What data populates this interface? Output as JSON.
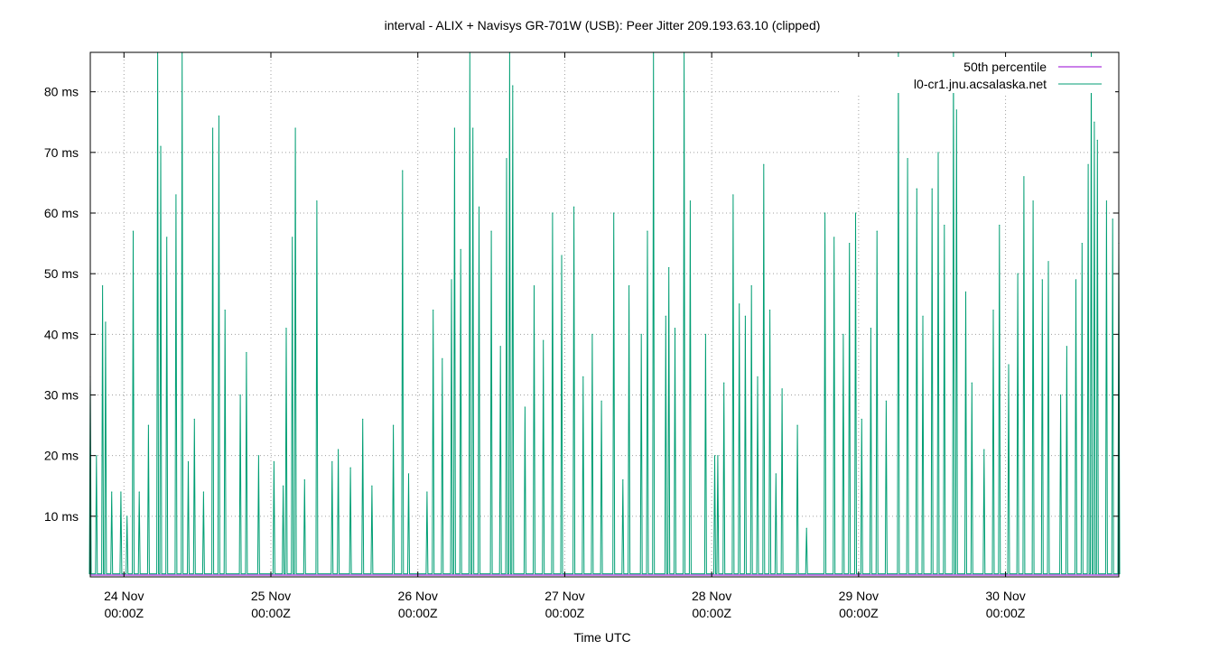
{
  "chart_data": {
    "type": "line",
    "title": "interval - ALIX + Navisys GR-701W (USB): Peer Jitter 209.193.63.10 (clipped)",
    "xlabel": "Time UTC",
    "ylabel": "",
    "x_range": [
      "2025-11-23T18:30Z",
      "2025-11-30T18:30Z"
    ],
    "ylim": [
      0,
      86.5
    ],
    "y_unit": "ms",
    "y_ticks": [
      {
        "value": 10,
        "label": "10 ms"
      },
      {
        "value": 20,
        "label": "20 ms"
      },
      {
        "value": 30,
        "label": "30 ms"
      },
      {
        "value": 40,
        "label": "40 ms"
      },
      {
        "value": 50,
        "label": "50 ms"
      },
      {
        "value": 60,
        "label": "60 ms"
      },
      {
        "value": 70,
        "label": "70 ms"
      },
      {
        "value": 80,
        "label": "80 ms"
      }
    ],
    "x_ticks": [
      {
        "value": "2025-11-24T00:00Z",
        "day": "24 Nov",
        "time": "00:00Z"
      },
      {
        "value": "2025-11-25T00:00Z",
        "day": "25 Nov",
        "time": "00:00Z"
      },
      {
        "value": "2025-11-26T00:00Z",
        "day": "26 Nov",
        "time": "00:00Z"
      },
      {
        "value": "2025-11-27T00:00Z",
        "day": "27 Nov",
        "time": "00:00Z"
      },
      {
        "value": "2025-11-28T00:00Z",
        "day": "28 Nov",
        "time": "00:00Z"
      },
      {
        "value": "2025-11-29T00:00Z",
        "day": "29 Nov",
        "time": "00:00Z"
      },
      {
        "value": "2025-11-30T00:00Z",
        "day": "30 Nov",
        "time": "00:00Z"
      }
    ],
    "grid": true,
    "legend_position": "top-right",
    "series": [
      {
        "name": "50th percentile",
        "color": "#9400d3",
        "kind": "constant",
        "value": 0.3
      },
      {
        "name": "l0-cr1.jnu.acsalaska.net",
        "color": "#009e73",
        "kind": "spikes",
        "baseline": 0.5,
        "points": [
          [
            "2025-11-23T18:30Z",
            33
          ],
          [
            "2025-11-23T19:30Z",
            20
          ],
          [
            "2025-11-23T20:30Z",
            48
          ],
          [
            "2025-11-23T21:00Z",
            42
          ],
          [
            "2025-11-23T22:00Z",
            14
          ],
          [
            "2025-11-23T23:30Z",
            14
          ],
          [
            "2025-11-24T00:30Z",
            10
          ],
          [
            "2025-11-24T01:30Z",
            57
          ],
          [
            "2025-11-24T02:30Z",
            14
          ],
          [
            "2025-11-24T04:00Z",
            25
          ],
          [
            "2025-11-24T05:30Z",
            86.5
          ],
          [
            "2025-11-24T06:00Z",
            71
          ],
          [
            "2025-11-24T07:00Z",
            56
          ],
          [
            "2025-11-24T08:30Z",
            63
          ],
          [
            "2025-11-24T09:30Z",
            86.5
          ],
          [
            "2025-11-24T10:30Z",
            19
          ],
          [
            "2025-11-24T11:30Z",
            26
          ],
          [
            "2025-11-24T13:00Z",
            14
          ],
          [
            "2025-11-24T14:30Z",
            74
          ],
          [
            "2025-11-24T15:30Z",
            76
          ],
          [
            "2025-11-24T16:30Z",
            44
          ],
          [
            "2025-11-24T19:00Z",
            30
          ],
          [
            "2025-11-24T20:00Z",
            37
          ],
          [
            "2025-11-24T22:00Z",
            20
          ],
          [
            "2025-11-25T00:30Z",
            19
          ],
          [
            "2025-11-25T02:00Z",
            15
          ],
          [
            "2025-11-25T02:30Z",
            41
          ],
          [
            "2025-11-25T03:30Z",
            56
          ],
          [
            "2025-11-25T04:00Z",
            74
          ],
          [
            "2025-11-25T05:30Z",
            16
          ],
          [
            "2025-11-25T07:30Z",
            62
          ],
          [
            "2025-11-25T10:00Z",
            19
          ],
          [
            "2025-11-25T11:00Z",
            21
          ],
          [
            "2025-11-25T13:00Z",
            18
          ],
          [
            "2025-11-25T15:00Z",
            26
          ],
          [
            "2025-11-25T16:30Z",
            15
          ],
          [
            "2025-11-25T20:00Z",
            25
          ],
          [
            "2025-11-25T21:30Z",
            67
          ],
          [
            "2025-11-25T22:30Z",
            17
          ],
          [
            "2025-11-26T01:30Z",
            14
          ],
          [
            "2025-11-26T02:30Z",
            44
          ],
          [
            "2025-11-26T04:00Z",
            36
          ],
          [
            "2025-11-26T05:30Z",
            49
          ],
          [
            "2025-11-26T06:00Z",
            74
          ],
          [
            "2025-11-26T07:00Z",
            54
          ],
          [
            "2025-11-26T08:30Z",
            86.5
          ],
          [
            "2025-11-26T09:00Z",
            74
          ],
          [
            "2025-11-26T10:00Z",
            61
          ],
          [
            "2025-11-26T12:00Z",
            57
          ],
          [
            "2025-11-26T13:30Z",
            38
          ],
          [
            "2025-11-26T14:30Z",
            69
          ],
          [
            "2025-11-26T15:00Z",
            86.5
          ],
          [
            "2025-11-26T15:30Z",
            81
          ],
          [
            "2025-11-26T17:30Z",
            28
          ],
          [
            "2025-11-26T19:00Z",
            48
          ],
          [
            "2025-11-26T20:30Z",
            39
          ],
          [
            "2025-11-26T22:00Z",
            60
          ],
          [
            "2025-11-26T23:30Z",
            53
          ],
          [
            "2025-11-27T01:30Z",
            61
          ],
          [
            "2025-11-27T03:00Z",
            33
          ],
          [
            "2025-11-27T04:30Z",
            40
          ],
          [
            "2025-11-27T06:00Z",
            29
          ],
          [
            "2025-11-27T08:00Z",
            60
          ],
          [
            "2025-11-27T09:30Z",
            16
          ],
          [
            "2025-11-27T10:30Z",
            48
          ],
          [
            "2025-11-27T12:30Z",
            40
          ],
          [
            "2025-11-27T13:30Z",
            57
          ],
          [
            "2025-11-27T14:30Z",
            86.5
          ],
          [
            "2025-11-27T16:30Z",
            43
          ],
          [
            "2025-11-27T17:00Z",
            51
          ],
          [
            "2025-11-27T18:00Z",
            41
          ],
          [
            "2025-11-27T19:30Z",
            86.5
          ],
          [
            "2025-11-27T20:30Z",
            62
          ],
          [
            "2025-11-27T23:00Z",
            40
          ],
          [
            "2025-11-28T00:30Z",
            20
          ],
          [
            "2025-11-28T01:00Z",
            20
          ],
          [
            "2025-11-28T02:00Z",
            32
          ],
          [
            "2025-11-28T03:30Z",
            63
          ],
          [
            "2025-11-28T04:30Z",
            45
          ],
          [
            "2025-11-28T05:30Z",
            43
          ],
          [
            "2025-11-28T06:30Z",
            48
          ],
          [
            "2025-11-28T07:30Z",
            33
          ],
          [
            "2025-11-28T08:30Z",
            68
          ],
          [
            "2025-11-28T09:30Z",
            44
          ],
          [
            "2025-11-28T10:30Z",
            17
          ],
          [
            "2025-11-28T11:30Z",
            31
          ],
          [
            "2025-11-28T14:00Z",
            25
          ],
          [
            "2025-11-28T15:30Z",
            8
          ],
          [
            "2025-11-28T18:30Z",
            60
          ],
          [
            "2025-11-28T20:00Z",
            56
          ],
          [
            "2025-11-28T21:30Z",
            40
          ],
          [
            "2025-11-28T22:30Z",
            55
          ],
          [
            "2025-11-28T23:30Z",
            60
          ],
          [
            "2025-11-29T00:30Z",
            26
          ],
          [
            "2025-11-29T02:00Z",
            41
          ],
          [
            "2025-11-29T03:00Z",
            57
          ],
          [
            "2025-11-29T04:30Z",
            29
          ],
          [
            "2025-11-29T06:30Z",
            86.5
          ],
          [
            "2025-11-29T08:00Z",
            69
          ],
          [
            "2025-11-29T09:30Z",
            64
          ],
          [
            "2025-11-29T10:30Z",
            43
          ],
          [
            "2025-11-29T12:00Z",
            64
          ],
          [
            "2025-11-29T13:00Z",
            70
          ],
          [
            "2025-11-29T14:00Z",
            58
          ],
          [
            "2025-11-29T15:30Z",
            86.5
          ],
          [
            "2025-11-29T16:00Z",
            77
          ],
          [
            "2025-11-29T17:30Z",
            47
          ],
          [
            "2025-11-29T18:30Z",
            32
          ],
          [
            "2025-11-29T20:30Z",
            21
          ],
          [
            "2025-11-29T22:00Z",
            44
          ],
          [
            "2025-11-29T23:00Z",
            58
          ],
          [
            "2025-11-30T00:30Z",
            35
          ],
          [
            "2025-11-30T02:00Z",
            50
          ],
          [
            "2025-11-30T03:00Z",
            66
          ],
          [
            "2025-11-30T04:30Z",
            62
          ],
          [
            "2025-11-30T06:00Z",
            49
          ],
          [
            "2025-11-30T07:00Z",
            52
          ],
          [
            "2025-11-30T09:00Z",
            30
          ],
          [
            "2025-11-30T10:00Z",
            38
          ],
          [
            "2025-11-30T11:30Z",
            49
          ],
          [
            "2025-11-30T12:30Z",
            55
          ],
          [
            "2025-11-30T13:30Z",
            68
          ],
          [
            "2025-11-30T14:00Z",
            86.5
          ],
          [
            "2025-11-30T14:30Z",
            75
          ],
          [
            "2025-11-30T15:00Z",
            72
          ],
          [
            "2025-11-30T16:30Z",
            62
          ],
          [
            "2025-11-30T17:30Z",
            59
          ],
          [
            "2025-11-30T18:30Z",
            55
          ]
        ]
      }
    ]
  }
}
